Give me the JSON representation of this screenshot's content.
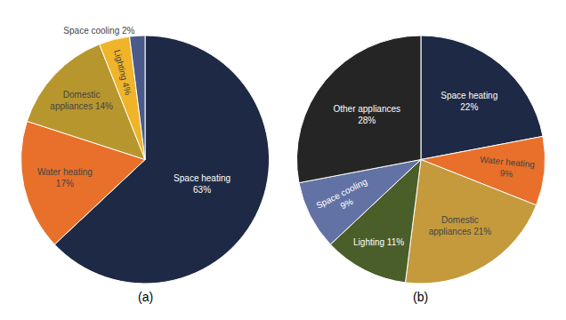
{
  "chart_data": [
    {
      "type": "pie",
      "subtitle": "(a)",
      "values": [
        63,
        17,
        14,
        4,
        2
      ],
      "value_labels": [
        "Space heating\n63%",
        "Water heating\n17%",
        "Domestic\nappliances 14%",
        "Lighting 4%",
        "Space cooling 2%"
      ],
      "colors": [
        "#1e2a45",
        "#e8702a",
        "#b8962e",
        "#f0b429",
        "#4a5a8a"
      ],
      "data_labels": true
    },
    {
      "type": "pie",
      "subtitle": "(b)",
      "values": [
        22,
        9,
        21,
        11,
        9,
        28
      ],
      "value_labels": [
        "Space heating\n22%",
        "Water heating\n9%",
        "Domestic\nappliances 21%",
        "Lighting 11%",
        "Space cooling\n9%",
        "Other appliances\n28%"
      ],
      "colors": [
        "#1e2a45",
        "#e8702a",
        "#c49a3c",
        "#4a5e2a",
        "#6272a4",
        "#252525"
      ],
      "data_labels": true
    }
  ]
}
